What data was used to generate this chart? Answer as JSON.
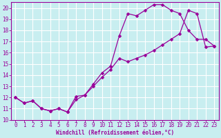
{
  "xlabel": "Windchill (Refroidissement éolien,°C)",
  "background_color": "#c8eef0",
  "line_color": "#990099",
  "grid_color": "#ffffff",
  "xlim": [
    -0.5,
    23.5
  ],
  "ylim": [
    10,
    20.5
  ],
  "yticks": [
    10,
    11,
    12,
    13,
    14,
    15,
    16,
    17,
    18,
    19,
    20
  ],
  "xticks": [
    0,
    1,
    2,
    3,
    4,
    5,
    6,
    7,
    8,
    9,
    10,
    11,
    12,
    13,
    14,
    15,
    16,
    17,
    18,
    19,
    20,
    21,
    22,
    23
  ],
  "series1_x": [
    0,
    1,
    2,
    3,
    4,
    5,
    6,
    7,
    8,
    9,
    10,
    11,
    12,
    13,
    14,
    15,
    16,
    17,
    18,
    19,
    20,
    21,
    22,
    23
  ],
  "series1_y": [
    12.0,
    11.5,
    11.7,
    11.0,
    10.8,
    11.0,
    10.7,
    12.1,
    12.2,
    13.2,
    14.2,
    14.8,
    17.5,
    19.5,
    19.3,
    19.8,
    20.3,
    20.3,
    19.8,
    19.5,
    18.0,
    17.2,
    17.2,
    16.6
  ],
  "series2_x": [
    0,
    1,
    2,
    3,
    4,
    5,
    6,
    7,
    8,
    9,
    10,
    11,
    12,
    13,
    14,
    15,
    16,
    17,
    18,
    19,
    20,
    21,
    22,
    23
  ],
  "series2_y": [
    12.0,
    11.5,
    11.7,
    11.0,
    10.8,
    11.0,
    10.7,
    11.8,
    12.2,
    13.0,
    13.8,
    14.5,
    15.5,
    15.2,
    15.5,
    15.8,
    16.2,
    16.7,
    17.2,
    17.7,
    19.8,
    19.5,
    16.5,
    16.6
  ],
  "marker_size": 2.5,
  "line_width": 0.9,
  "tick_fontsize": 5.5,
  "xlabel_fontsize": 5.5
}
